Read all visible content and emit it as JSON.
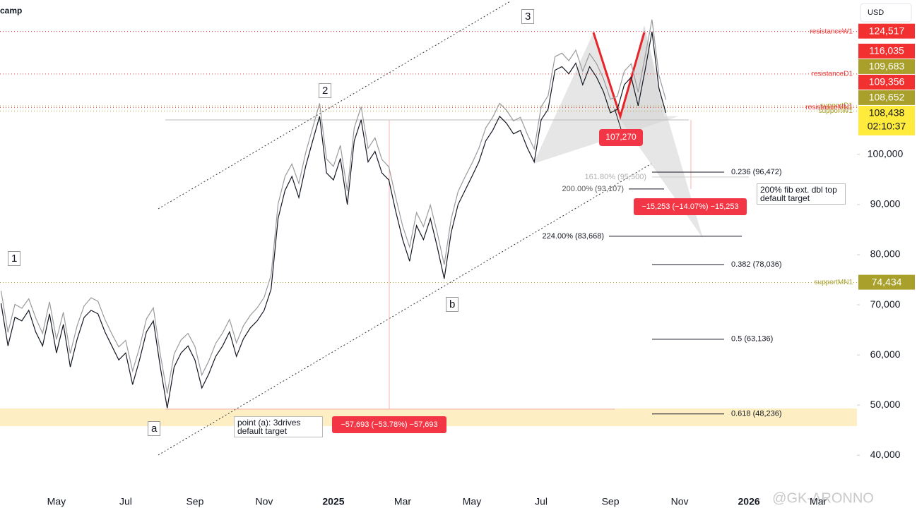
{
  "chart_data": {
    "type": "line",
    "title": "camp",
    "currency": "USD",
    "xlim": [
      -1.63,
      23.12
    ],
    "ylim": [
      33000,
      130800
    ],
    "xticks": [
      {
        "value": 0,
        "label": "May"
      },
      {
        "value": 2,
        "label": "Jul"
      },
      {
        "value": 4,
        "label": "Sep"
      },
      {
        "value": 6,
        "label": "Nov"
      },
      {
        "value": 8,
        "label": "2025"
      },
      {
        "value": 10,
        "label": "Mar"
      },
      {
        "value": 12,
        "label": "May"
      },
      {
        "value": 14,
        "label": "Jul"
      },
      {
        "value": 16,
        "label": "Sep"
      },
      {
        "value": 18,
        "label": "Nov"
      },
      {
        "value": 20,
        "label": "2026"
      },
      {
        "value": 22,
        "label": "Mar"
      }
    ],
    "yticks": [
      {
        "value": 40000,
        "label": "40,000"
      },
      {
        "value": 50000,
        "label": "50,000"
      },
      {
        "value": 60000,
        "label": "60,000"
      },
      {
        "value": 70000,
        "label": "70,000"
      },
      {
        "value": 80000,
        "label": "80,000"
      },
      {
        "value": 90000,
        "label": "90,000"
      },
      {
        "value": 100000,
        "label": "100,000"
      }
    ],
    "x": [
      -1.6,
      -1.4,
      -1.2,
      -1.0,
      -0.8,
      -0.6,
      -0.4,
      -0.2,
      0,
      0.2,
      0.4,
      0.6,
      0.8,
      1.0,
      1.2,
      1.4,
      1.6,
      1.8,
      2.0,
      2.2,
      2.4,
      2.6,
      2.8,
      3.0,
      3.2,
      3.4,
      3.6,
      3.8,
      4.0,
      4.2,
      4.4,
      4.6,
      4.8,
      5.0,
      5.2,
      5.4,
      5.6,
      5.8,
      6.0,
      6.2,
      6.4,
      6.6,
      6.8,
      7.0,
      7.2,
      7.4,
      7.6,
      7.8,
      8.0,
      8.2,
      8.4,
      8.6,
      8.8,
      9.0,
      9.2,
      9.4,
      9.6,
      9.8,
      10.0,
      10.2,
      10.4,
      10.6,
      10.8,
      11.0,
      11.2,
      11.4,
      11.6,
      11.8,
      12.0,
      12.2,
      12.4,
      12.6,
      12.8,
      13.0,
      13.2,
      13.4,
      13.6,
      13.8,
      14.0,
      14.2,
      14.4,
      14.6,
      14.8,
      15.0,
      15.2,
      15.4,
      15.6,
      15.8,
      16.0,
      16.2,
      16.4,
      16.6,
      16.8,
      17.0,
      17.2,
      17.4,
      17.6
    ],
    "series": [
      {
        "color": "#131722",
        "values": [
          70300,
          61800,
          67500,
          66800,
          68900,
          64600,
          61800,
          68200,
          60400,
          66100,
          57600,
          63200,
          67500,
          68900,
          68200,
          64600,
          61800,
          59000,
          60400,
          54100,
          59000,
          64600,
          66800,
          57600,
          49400,
          57600,
          60400,
          61800,
          59000,
          53400,
          56200,
          59700,
          61800,
          64600,
          59700,
          63200,
          65400,
          66800,
          68900,
          73100,
          87200,
          92800,
          95600,
          91400,
          97700,
          102700,
          107600,
          96300,
          94900,
          99200,
          90000,
          102700,
          106900,
          98500,
          100600,
          96300,
          94900,
          88600,
          83000,
          78700,
          85800,
          83000,
          87200,
          81500,
          75200,
          84400,
          90000,
          92800,
          95600,
          98500,
          102700,
          104800,
          107600,
          106200,
          104100,
          104800,
          101300,
          98500,
          106900,
          109000,
          116800,
          117500,
          116100,
          118200,
          113900,
          117500,
          115400,
          112500,
          108300,
          109000,
          113900,
          115400,
          109700,
          116800,
          124500,
          113200,
          108300
        ]
      },
      {
        "color": "#9a9a9a",
        "values": [
          72800,
          64500,
          70100,
          69300,
          71200,
          67400,
          64300,
          70600,
          63100,
          68500,
          60300,
          65900,
          69800,
          71400,
          70700,
          67100,
          64200,
          61600,
          62900,
          56800,
          61500,
          67200,
          69400,
          60100,
          52300,
          60200,
          63000,
          64300,
          61700,
          56000,
          58800,
          62300,
          64400,
          67100,
          62400,
          65800,
          67900,
          69400,
          71500,
          75900,
          90100,
          95600,
          98100,
          94200,
          100400,
          105300,
          110200,
          99100,
          97600,
          101800,
          92700,
          105300,
          109500,
          101200,
          103300,
          99000,
          97500,
          91400,
          85700,
          81500,
          88400,
          85600,
          89900,
          84300,
          78000,
          87100,
          92600,
          95500,
          98200,
          101200,
          105300,
          107400,
          110200,
          108800,
          106700,
          107400,
          104000,
          101100,
          109500,
          111700,
          119500,
          120200,
          118700,
          120800,
          116600,
          120100,
          118100,
          115100,
          111000,
          111600,
          116600,
          118100,
          112400,
          119500,
          126900,
          115800,
          110900
        ]
      }
    ],
    "levels": [
      {
        "name": "resistanceW1",
        "value": 124517,
        "value_label": "124,517",
        "color": "#f23030"
      },
      {
        "name": "resistanceD1",
        "value": 116035,
        "value_label": "116,035",
        "color": "#f23030"
      },
      {
        "name": "supportD1",
        "value": 109683,
        "value_label": "109,683",
        "color": "#a8a02a"
      },
      {
        "name": "resistanceMN1",
        "value": 109356,
        "value_label": "109,356",
        "color": "#f23030"
      },
      {
        "name": "supportW1",
        "value": 108652,
        "value_label": "108,652",
        "color": "#a8a02a"
      },
      {
        "name": "supportMN1",
        "value": 74434,
        "value_label": "74,434",
        "color": "#a8a02a"
      }
    ],
    "current_price": {
      "value": 108438,
      "label": "108,438",
      "countdown": "02:10:37",
      "color": "#ffeb3b"
    },
    "fib_levels": [
      {
        "value": 96472,
        "label": "0.236 (96,472)"
      },
      {
        "value": 78036,
        "label": "0.382 (78,036)"
      },
      {
        "value": 63136,
        "label": "0.5 (63,136)"
      },
      {
        "value": 48236,
        "label": "0.618 (48,236)"
      },
      {
        "value": 95500,
        "label": "161.80% (95,500)"
      },
      {
        "value": 93107,
        "label": "200.00% (93,107)"
      },
      {
        "value": 83668,
        "label": "224.00% (83,668)"
      }
    ],
    "pivot": {
      "value": 107270,
      "label": "107,270"
    },
    "measures": [
      "−15,253 (−14.07%) −15,253",
      "−57,693 (−53.78%) −57,693"
    ],
    "notes": [
      "200% fib ext. dbl top default target",
      "point (a): 3drives default target"
    ],
    "waves": [
      "1",
      "2",
      "3",
      "a",
      "b"
    ],
    "watermark": "@GK-ARONNO"
  }
}
